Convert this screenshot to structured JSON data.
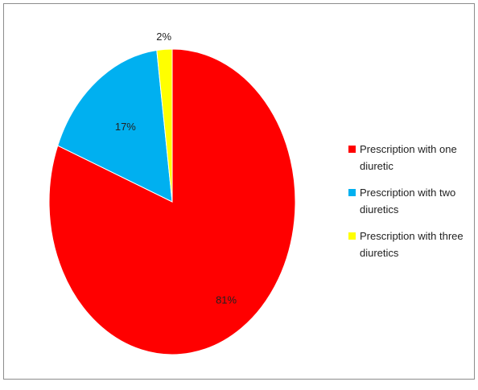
{
  "chart_data": {
    "type": "pie",
    "title": "",
    "categories": [
      "Prescription with one diuretic",
      "Prescription with two diuretics",
      "Prescription with three diuretics"
    ],
    "values": [
      81,
      17,
      2
    ],
    "labels": [
      "81%",
      "17%",
      "2%"
    ],
    "colors": [
      "#ff0000",
      "#00b0f0",
      "#ffff00"
    ],
    "start_angle": "12 o'clock",
    "direction": "clockwise",
    "legend": "right"
  }
}
